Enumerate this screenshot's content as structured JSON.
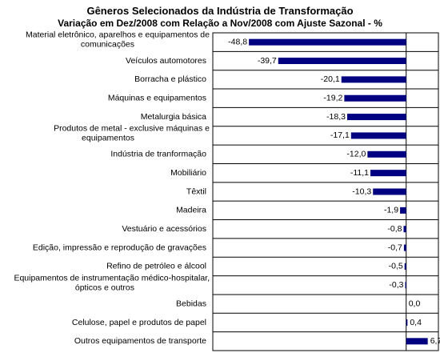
{
  "chart_data": {
    "type": "bar",
    "orientation": "horizontal",
    "title": "Gêneros Selecionados da Indústria de Transformação",
    "subtitle": "Variação em Dez/2008 com Relação a Nov/2008 com Ajuste Sazonal - %",
    "xlabel": "",
    "ylabel": "",
    "xlim": [
      -60,
      10
    ],
    "grid": "horizontal lines",
    "bar_color": "#000080",
    "categories": [
      "Material eletrônico, aparelhos e equipamentos de comunicações",
      "Veículos automotores",
      "Borracha e plástico",
      "Máquinas e equipamentos",
      "Metalurgia básica",
      "Produtos de metal - exclusive máquinas e equipamentos",
      "Indústria de tranformação",
      "Mobiliário",
      "Têxtil",
      "Madeira",
      "Vestuário e acessórios",
      "Edição, impressão e reprodução de gravações",
      "Refino de petróleo e álcool",
      "Equipamentos de instrumentação médico-hospitalar, ópticos e outros",
      "Bebidas",
      "Celulose, papel e produtos de papel",
      "Outros equipamentos de transporte"
    ],
    "category_lines": [
      [
        "Material eletrônico, aparelhos e equipamentos de",
        "comunicações"
      ],
      [
        "Veículos automotores"
      ],
      [
        "Borracha e plástico"
      ],
      [
        "Máquinas e equipamentos"
      ],
      [
        "Metalurgia básica"
      ],
      [
        "Produtos de metal - exclusive máquinas e",
        "equipamentos"
      ],
      [
        "Indústria de tranformação"
      ],
      [
        "Mobiliário"
      ],
      [
        "Têxtil"
      ],
      [
        "Madeira"
      ],
      [
        "Vestuário e acessórios"
      ],
      [
        "Edição, impressão e reprodução de gravações"
      ],
      [
        "Refino de petróleo e álcool"
      ],
      [
        "Equipamentos de instrumentação médico-hospitalar,",
        "ópticos e outros"
      ],
      [
        "Bebidas"
      ],
      [
        "Celulose, papel e produtos de papel"
      ],
      [
        "Outros equipamentos de transporte"
      ]
    ],
    "values": [
      -48.8,
      -39.7,
      -20.1,
      -19.2,
      -18.3,
      -17.1,
      -12.0,
      -11.1,
      -10.3,
      -1.9,
      -0.8,
      -0.7,
      -0.5,
      -0.3,
      0.0,
      0.4,
      6.7
    ],
    "value_labels": [
      "-48,8",
      "-39,7",
      "-20,1",
      "-19,2",
      "-18,3",
      "-17,1",
      "-12,0",
      "-11,1",
      "-10,3",
      "-1,9",
      "-0,8",
      "-0,7",
      "-0,5",
      "-0,3",
      "0,0",
      "0,4",
      "6,7"
    ]
  }
}
